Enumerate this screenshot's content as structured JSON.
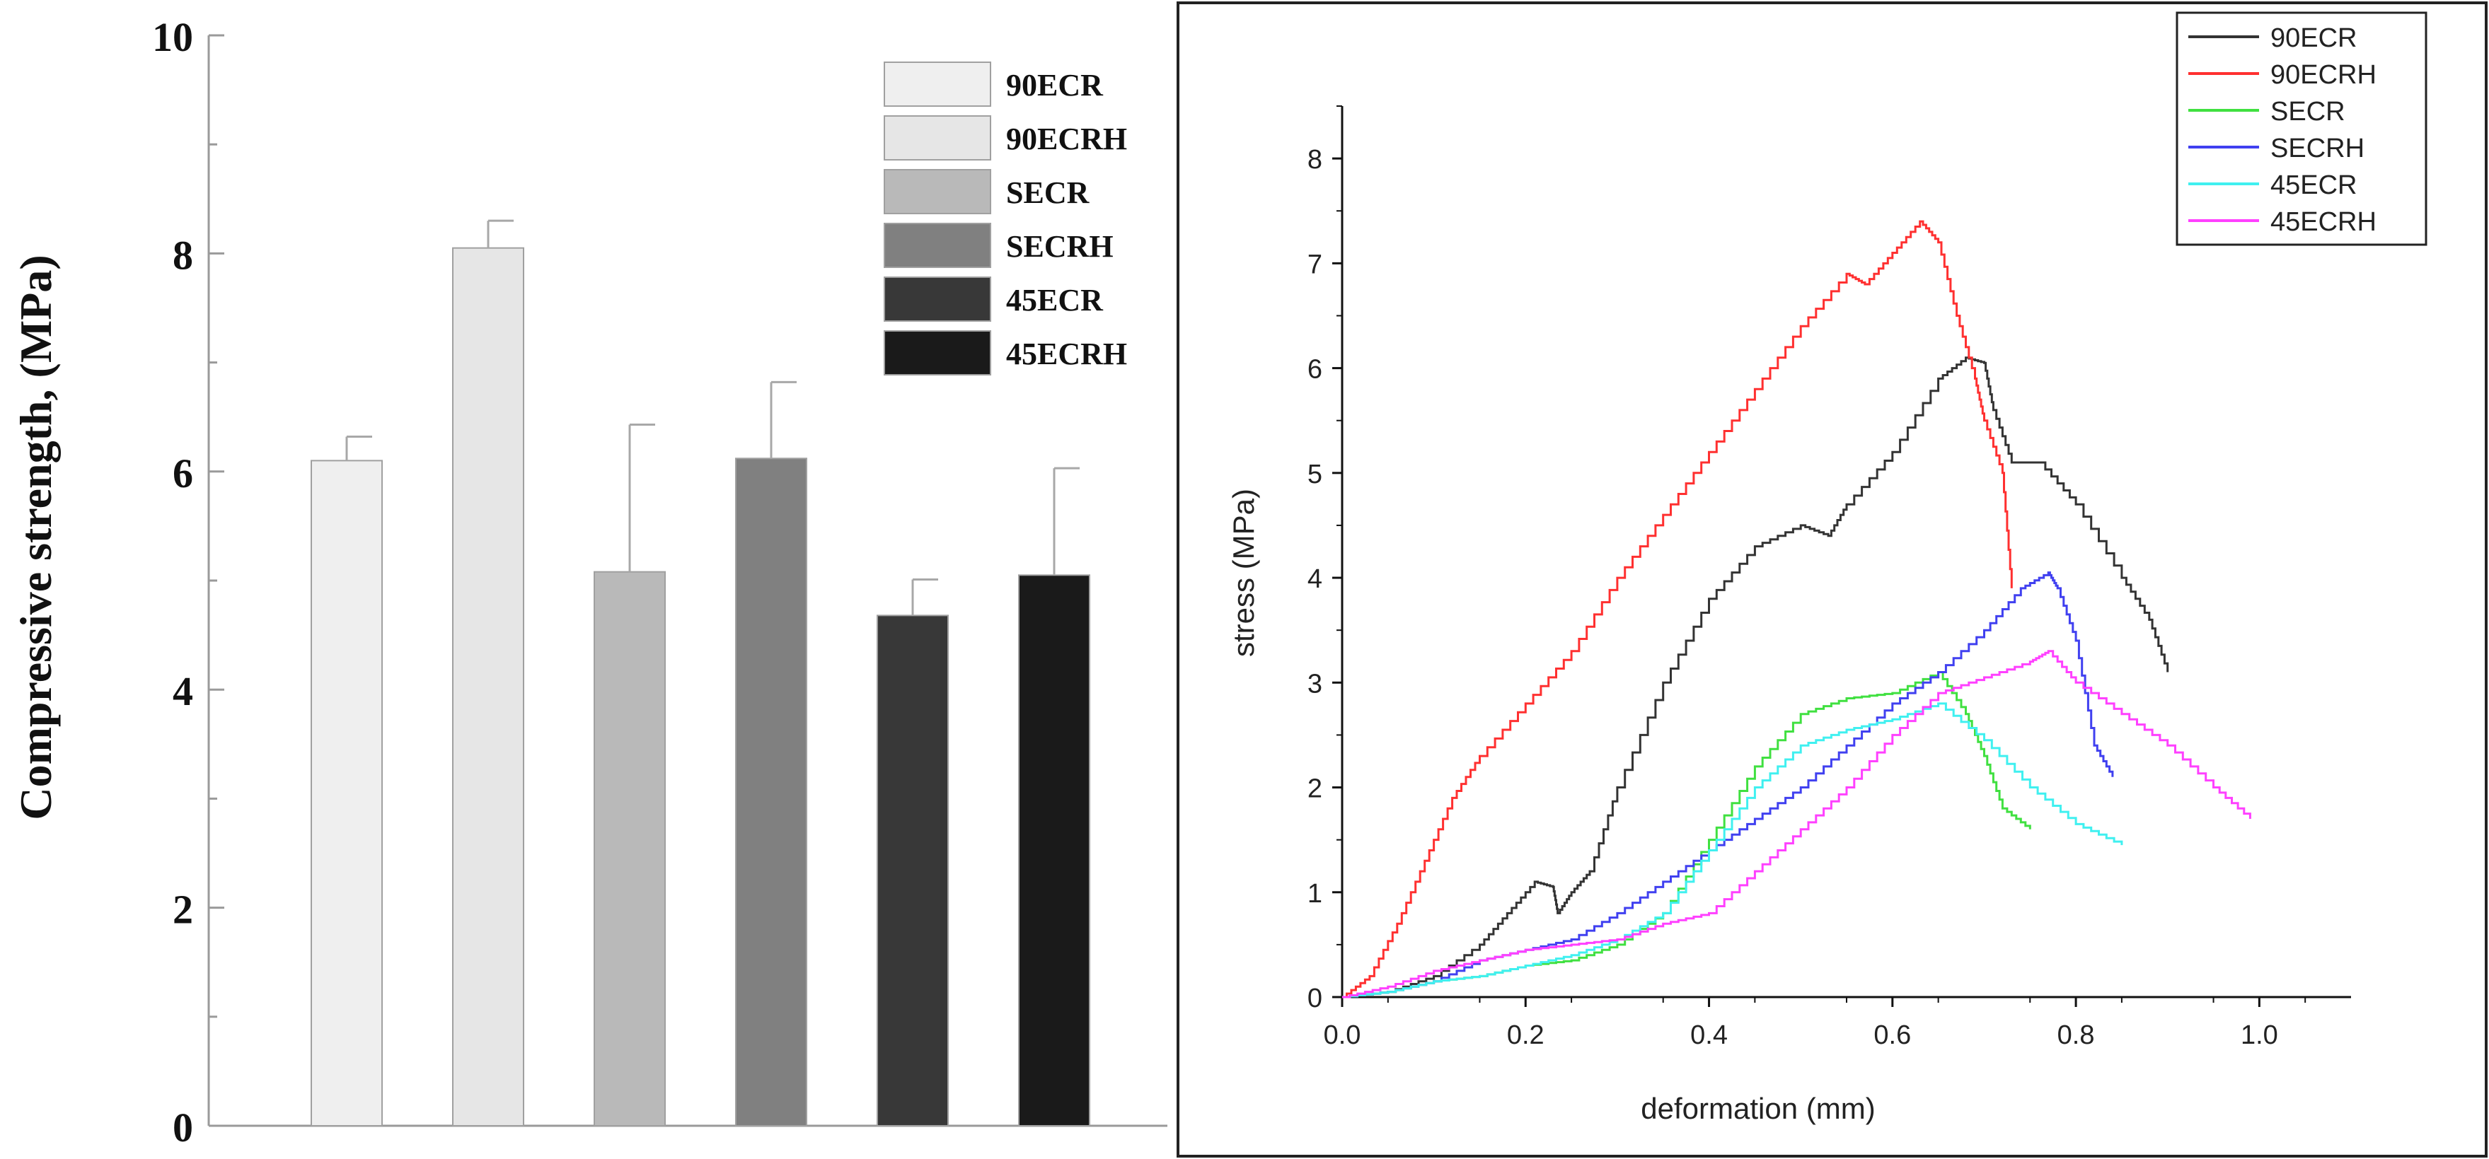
{
  "chart_data": [
    {
      "type": "bar",
      "title": "",
      "xlabel": "",
      "ylabel": "Compressive strength, (MPa)",
      "ylim": [
        0,
        10
      ],
      "yticks": [
        "0",
        "2",
        "4",
        "6",
        "8",
        "10"
      ],
      "categories": [
        "90ECR",
        "90ECRH",
        "SECR",
        "SECRH",
        "45ECR",
        "45ECRH"
      ],
      "values": [
        6.1,
        8.05,
        5.08,
        6.12,
        4.68,
        5.05
      ],
      "errors": [
        0.22,
        0.25,
        1.35,
        0.7,
        0.33,
        0.98
      ],
      "colors": [
        "#efefef",
        "#e6e6e6",
        "#b9b9b9",
        "#808080",
        "#383838",
        "#1a1a1a"
      ],
      "legend": {
        "position": "top-right",
        "entries": [
          "90ECR",
          "90ECRH",
          "SECR",
          "SECRH",
          "45ECR",
          "45ECRH"
        ]
      },
      "grid": false
    },
    {
      "type": "line",
      "title": "",
      "xlabel": "deformation (mm)",
      "ylabel": "stress (MPa)",
      "xlim": [
        0,
        1.1
      ],
      "ylim": [
        0,
        8.5
      ],
      "xticks": [
        "0.0",
        "0.2",
        "0.4",
        "0.6",
        "0.8",
        "1.0"
      ],
      "yticks": [
        "0",
        "1",
        "2",
        "3",
        "4",
        "5",
        "6",
        "7",
        "8"
      ],
      "legend": {
        "position": "top-right",
        "entries": [
          "90ECR",
          "90ECRH",
          "SECR",
          "SECRH",
          "45ECR",
          "45ECRH"
        ]
      },
      "grid": false,
      "series": [
        {
          "name": "90ECR",
          "color": "#333333",
          "x": [
            0,
            0.05,
            0.1,
            0.15,
            0.18,
            0.21,
            0.23,
            0.235,
            0.25,
            0.27,
            0.3,
            0.35,
            0.4,
            0.45,
            0.5,
            0.53,
            0.55,
            0.6,
            0.65,
            0.68,
            0.7,
            0.71,
            0.73,
            0.76,
            0.8,
            0.85,
            0.88,
            0.9
          ],
          "y": [
            0,
            0.05,
            0.2,
            0.5,
            0.8,
            1.1,
            1.05,
            0.8,
            1.0,
            1.2,
            2.0,
            3.0,
            3.8,
            4.3,
            4.5,
            4.4,
            4.7,
            5.2,
            5.9,
            6.1,
            6.05,
            5.6,
            5.1,
            5.1,
            4.7,
            4.0,
            3.6,
            3.1
          ]
        },
        {
          "name": "90ECRH",
          "color": "#ff3030",
          "x": [
            0,
            0.03,
            0.06,
            0.09,
            0.12,
            0.15,
            0.2,
            0.25,
            0.3,
            0.35,
            0.4,
            0.45,
            0.5,
            0.55,
            0.57,
            0.6,
            0.63,
            0.65,
            0.67,
            0.69,
            0.7,
            0.72,
            0.73
          ],
          "y": [
            0,
            0.2,
            0.7,
            1.3,
            1.9,
            2.3,
            2.8,
            3.3,
            4.0,
            4.6,
            5.2,
            5.8,
            6.4,
            6.9,
            6.8,
            7.1,
            7.4,
            7.2,
            6.5,
            5.9,
            5.5,
            5.0,
            3.9
          ]
        },
        {
          "name": "SECR",
          "color": "#40e040",
          "x": [
            0,
            0.05,
            0.1,
            0.15,
            0.2,
            0.25,
            0.3,
            0.35,
            0.4,
            0.45,
            0.5,
            0.55,
            0.6,
            0.65,
            0.68,
            0.7,
            0.72,
            0.75
          ],
          "y": [
            0,
            0.05,
            0.15,
            0.2,
            0.3,
            0.35,
            0.5,
            0.8,
            1.5,
            2.2,
            2.7,
            2.85,
            2.9,
            3.1,
            2.7,
            2.3,
            1.8,
            1.6
          ]
        },
        {
          "name": "SECRH",
          "color": "#4040f0",
          "x": [
            0,
            0.05,
            0.1,
            0.15,
            0.2,
            0.25,
            0.3,
            0.35,
            0.4,
            0.45,
            0.5,
            0.55,
            0.6,
            0.65,
            0.7,
            0.74,
            0.77,
            0.78,
            0.8,
            0.82,
            0.84
          ],
          "y": [
            0,
            0.05,
            0.15,
            0.35,
            0.45,
            0.55,
            0.8,
            1.1,
            1.4,
            1.7,
            2.0,
            2.4,
            2.8,
            3.1,
            3.5,
            3.9,
            4.05,
            3.9,
            3.4,
            2.4,
            2.1
          ]
        },
        {
          "name": "45ECR",
          "color": "#40f0f0",
          "x": [
            0,
            0.05,
            0.1,
            0.15,
            0.2,
            0.25,
            0.3,
            0.35,
            0.4,
            0.45,
            0.5,
            0.55,
            0.6,
            0.65,
            0.7,
            0.75,
            0.8,
            0.85
          ],
          "y": [
            0,
            0.05,
            0.15,
            0.2,
            0.3,
            0.4,
            0.55,
            0.8,
            1.4,
            2.0,
            2.4,
            2.55,
            2.65,
            2.8,
            2.45,
            2.0,
            1.65,
            1.45
          ]
        },
        {
          "name": "45ECRH",
          "color": "#ff40ff",
          "x": [
            0,
            0.05,
            0.1,
            0.15,
            0.2,
            0.25,
            0.3,
            0.35,
            0.4,
            0.45,
            0.5,
            0.55,
            0.6,
            0.65,
            0.7,
            0.75,
            0.77,
            0.8,
            0.85,
            0.9,
            0.95,
            0.99
          ],
          "y": [
            0,
            0.1,
            0.25,
            0.35,
            0.45,
            0.5,
            0.55,
            0.7,
            0.8,
            1.2,
            1.6,
            2.0,
            2.5,
            2.9,
            3.05,
            3.2,
            3.3,
            3.0,
            2.7,
            2.4,
            2.0,
            1.7
          ]
        }
      ]
    }
  ]
}
